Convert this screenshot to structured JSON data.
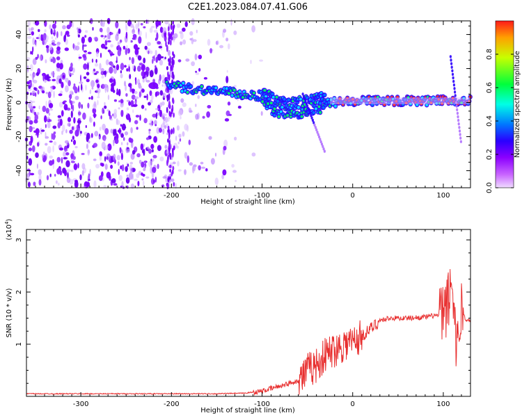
{
  "title": "C2E1.2023.084.07.41.G06",
  "chart_data": [
    {
      "type": "heatmap",
      "xlabel": "Height of straight line (km)",
      "ylabel": "Frequency (Hz)",
      "xlim": [
        -360,
        130
      ],
      "ylim": [
        -50,
        48
      ],
      "x_ticks": [
        -300,
        -200,
        -100,
        0,
        100
      ],
      "y_ticks": [
        -40,
        -20,
        0,
        20,
        40
      ],
      "colorbar": {
        "label": "Normalized spectral amplitude",
        "range": [
          0.0,
          1.0
        ],
        "ticks": [
          0.0,
          0.2,
          0.4,
          0.6,
          0.8
        ],
        "colors": [
          "#ff1a1a",
          "#ffa000",
          "#c8ff00",
          "#00ff3c",
          "#00ffe6",
          "#0078ff",
          "#2a00ff",
          "#8c00ff",
          "#c864ff",
          "#f0dcff"
        ]
      },
      "ridge": [
        {
          "x": -200,
          "y": 10
        },
        {
          "x": -175,
          "y": 8
        },
        {
          "x": -150,
          "y": 7
        },
        {
          "x": -125,
          "y": 5
        },
        {
          "x": -100,
          "y": 4
        },
        {
          "x": -85,
          "y": -2
        },
        {
          "x": -70,
          "y": -4
        },
        {
          "x": -50,
          "y": -2
        },
        {
          "x": -30,
          "y": 0
        },
        {
          "x": 0,
          "y": 1
        },
        {
          "x": 50,
          "y": 1
        },
        {
          "x": 100,
          "y": 1
        },
        {
          "x": 130,
          "y": 1
        }
      ],
      "secondary_traces": [
        {
          "from": {
            "x": -55,
            "y": 5
          },
          "to": {
            "x": -30,
            "y": -30
          }
        },
        {
          "from": {
            "x": 108,
            "y": 27
          },
          "to": {
            "x": 120,
            "y": -25
          }
        }
      ]
    },
    {
      "type": "line",
      "xlabel": "Height of straight line (km)",
      "ylabel": "SNR (10 * v/v)",
      "y_multiplier": "(x10^4)",
      "xlim": [
        -360,
        130
      ],
      "ylim": [
        0,
        3.2
      ],
      "x_ticks": [
        -300,
        -200,
        -100,
        0,
        100
      ],
      "y_ticks": [
        1,
        2,
        3
      ],
      "line_color": "#e83030",
      "series": [
        {
          "x": [
            -360,
            -300,
            -200,
            -150,
            -120,
            -100,
            -80,
            -60,
            -50,
            -40,
            -30,
            -20,
            -10,
            0,
            10,
            20,
            30,
            40,
            60,
            80,
            90,
            100,
            105,
            110,
            115,
            120,
            125,
            130
          ],
          "y": [
            0.05,
            0.05,
            0.05,
            0.05,
            0.06,
            0.1,
            0.2,
            0.3,
            0.5,
            0.6,
            0.8,
            0.9,
            1.0,
            1.05,
            1.15,
            1.3,
            1.45,
            1.5,
            1.5,
            1.52,
            1.55,
            1.55,
            1.8,
            2.2,
            0.9,
            1.7,
            1.45,
            1.45
          ]
        }
      ]
    }
  ]
}
